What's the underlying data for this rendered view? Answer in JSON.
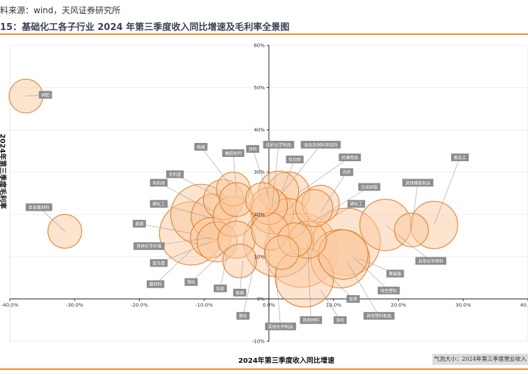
{
  "header": {
    "source": "料来源：wind，天风证券研究所",
    "title": "15：基础化工各子行业 2024 年第三季度收入同比增速及毛利率全景图"
  },
  "legend_note": "气泡大小：2024年第三季度营业收入",
  "colors": {
    "accent": "#f08a24",
    "bubble_fill": "#f9c9a0",
    "bubble_stroke": "#e8761a",
    "label_bg": "#8c8c8c",
    "label_text": "#ffffff"
  },
  "chart_data": {
    "type": "scatter",
    "xlabel": "2024年第三季度收入同比增速",
    "ylabel": "2024年第三季度毛利率",
    "xlim": [
      -40,
      40
    ],
    "ylim": [
      -10,
      60
    ],
    "x_ticks": [
      "-40.0%",
      "-30.0%",
      "-20.0%",
      "-10.0%",
      "0.0%",
      "10.0%",
      "20.0%",
      "30.0%",
      "40.0%"
    ],
    "y_ticks": [
      "-10%",
      "0%",
      "10%",
      "20%",
      "30%",
      "40%",
      "50%",
      "60%"
    ],
    "points": [
      {
        "name": "钾肥",
        "x": -37.5,
        "y": 48.0,
        "size": 3
      },
      {
        "name": "非金属材料",
        "x": -31.5,
        "y": 16.0,
        "size": 3
      },
      {
        "name": "氟化工",
        "x": 25.5,
        "y": 17.5,
        "size": 8
      },
      {
        "name": "其他橡胶制品",
        "x": 22.0,
        "y": 16.3,
        "size": 3
      },
      {
        "name": "其他化学原料",
        "x": 18.0,
        "y": 17.5,
        "size": 10
      },
      {
        "name": "改性塑料",
        "x": 12.0,
        "y": 13.5,
        "size": 20
      },
      {
        "name": "其他塑料制品",
        "x": 11.5,
        "y": 10.5,
        "size": 9
      },
      {
        "name": "聚氨酯",
        "x": 11.0,
        "y": 9.5,
        "size": 14
      },
      {
        "name": "磷化工",
        "x": 8.0,
        "y": 22.5,
        "size": 4
      },
      {
        "name": "合成树脂",
        "x": 5.0,
        "y": 11.5,
        "size": 25
      },
      {
        "name": "农药",
        "x": 4.0,
        "y": 14.0,
        "size": 3
      },
      {
        "name": "民爆用品",
        "x": 3.0,
        "y": 25.0,
        "size": 6
      },
      {
        "name": "纯碱",
        "x": -5.5,
        "y": 26.0,
        "size": 3
      },
      {
        "name": "橡胶助剂",
        "x": -5.0,
        "y": 23.5,
        "size": 3
      },
      {
        "name": "涤纶",
        "x": -10.5,
        "y": 20.0,
        "size": 15
      },
      {
        "name": "无机盐",
        "x": -7.0,
        "y": 23.5,
        "size": 5
      },
      {
        "name": "有机硅",
        "x": -8.5,
        "y": 19.5,
        "size": 7
      },
      {
        "name": "钛白粉",
        "x": 1.5,
        "y": 25.5,
        "size": 5
      },
      {
        "name": "食品及饲料添加剂",
        "x": -1.0,
        "y": 23.5,
        "size": 3
      },
      {
        "name": "其他化学制品",
        "x": 0.5,
        "y": 20.5,
        "size": 6
      },
      {
        "name": "涂料",
        "x": 0.0,
        "y": 22.0,
        "size": 4
      },
      {
        "name": "氯碱",
        "x": -12.0,
        "y": 15.5,
        "size": 17
      },
      {
        "name": "其他化学纤维",
        "x": -9.0,
        "y": 14.5,
        "size": 5
      },
      {
        "name": "复合肥",
        "x": -8.0,
        "y": 13.5,
        "size": 5
      },
      {
        "name": "氮肥",
        "x": -5.0,
        "y": 14.0,
        "size": 4
      },
      {
        "name": "粘胶",
        "x": -4.5,
        "y": 9.0,
        "size": 3
      },
      {
        "name": "锦纶",
        "x": 2.0,
        "y": 11.0,
        "size": 3
      },
      {
        "name": "其他化学原料2",
        "x": 1.5,
        "y": 13.5,
        "size": 22
      },
      {
        "name": "炭黑",
        "x": 5.5,
        "y": 5.0,
        "size": 14
      },
      {
        "name": "其他材料",
        "x": 6.0,
        "y": 14.0,
        "size": 4
      },
      {
        "name": "氨纶",
        "x": 3.0,
        "y": 19.0,
        "size": 5
      },
      {
        "name": "膜材料",
        "x": -5.5,
        "y": 19.5,
        "size": 5
      },
      {
        "name": "玻纤",
        "x": 7.0,
        "y": 21.5,
        "size": 4
      },
      {
        "name": "纺织化学制品",
        "x": 0.2,
        "y": 16.0,
        "size": 4
      }
    ],
    "labels": [
      {
        "text": "钾肥",
        "x": -34.5,
        "y": 48.3,
        "target": [
          -37.5,
          48.0
        ]
      },
      {
        "text": "非金属材料",
        "x": -35.5,
        "y": 21.7,
        "target": [
          -31.5,
          16.0
        ]
      },
      {
        "text": "纯碱",
        "x": -10.5,
        "y": 36.0,
        "target": [
          -6.0,
          27.0
        ]
      },
      {
        "text": "橡胶助剂",
        "x": -5.5,
        "y": 34.5,
        "target": [
          -5.0,
          25.0
        ]
      },
      {
        "text": "涂料",
        "x": -2.5,
        "y": 35.5,
        "target": [
          0.0,
          24.0
        ]
      },
      {
        "text": "纺织化学制品",
        "x": 1.5,
        "y": 36.5,
        "target": [
          0.5,
          22.0
        ]
      },
      {
        "text": "食品及饲料添加剂",
        "x": 8.0,
        "y": 36.5,
        "target": [
          1.5,
          24.0
        ]
      },
      {
        "text": "钛白粉",
        "x": 4.0,
        "y": 33.0,
        "target": [
          2.0,
          25.5
        ]
      },
      {
        "text": "民爆用品",
        "x": 12.5,
        "y": 33.5,
        "target": [
          4.5,
          25.0
        ]
      },
      {
        "text": "农药",
        "x": 12.0,
        "y": 30.0,
        "target": [
          8.0,
          20.5
        ]
      },
      {
        "text": "合成树脂",
        "x": 15.5,
        "y": 26.5,
        "target": [
          7.0,
          18.5
        ]
      },
      {
        "text": "磷化工",
        "x": 13.5,
        "y": 22.5,
        "target": [
          10.0,
          19.5
        ]
      },
      {
        "text": "氟化工",
        "x": 29.5,
        "y": 33.5,
        "target": [
          25.5,
          17.5
        ]
      },
      {
        "text": "其他橡胶制品",
        "x": 23.0,
        "y": 27.5,
        "target": [
          22.0,
          16.3
        ]
      },
      {
        "text": "其他化学原料",
        "x": 25.0,
        "y": 9.0,
        "target": [
          18.0,
          17.5
        ]
      },
      {
        "text": "聚氨酯",
        "x": 19.5,
        "y": 6.0,
        "target": [
          14.0,
          9.5
        ]
      },
      {
        "text": "改性塑料",
        "x": 18.5,
        "y": 2.0,
        "target": [
          13.0,
          10.0
        ]
      },
      {
        "text": "其他塑料制品",
        "x": 17.0,
        "y": -4.0,
        "target": [
          12.0,
          9.0
        ]
      },
      {
        "text": "炭黑",
        "x": 13.0,
        "y": 0.0,
        "target": [
          9.0,
          6.0
        ]
      },
      {
        "text": "涤纶",
        "x": 11.0,
        "y": -5.0,
        "target": [
          8.0,
          2.0
        ]
      },
      {
        "text": "其他材料",
        "x": 6.5,
        "y": -5.0,
        "target": [
          6.0,
          13.0
        ]
      },
      {
        "text": "其他化学制品",
        "x": 1.8,
        "y": -6.5,
        "target": [
          1.0,
          8.0
        ]
      },
      {
        "text": "氨纶",
        "x": -4.0,
        "y": -4.0,
        "target": [
          -2.0,
          10.0
        ]
      },
      {
        "text": "氯碱",
        "x": -4.5,
        "y": 1.5,
        "target": [
          -4.0,
          9.0
        ]
      },
      {
        "text": "粘胶",
        "x": -7.5,
        "y": 2.5,
        "target": [
          -6.5,
          10.0
        ]
      },
      {
        "text": "锦纶",
        "x": -12.0,
        "y": 4.0,
        "target": [
          -6.5,
          12.0
        ]
      },
      {
        "text": "膜材料",
        "x": -17.5,
        "y": 3.5,
        "target": [
          -12.0,
          11.5
        ]
      },
      {
        "text": "复合肥",
        "x": -17.0,
        "y": 8.5,
        "target": [
          -9.0,
          13.5
        ]
      },
      {
        "text": "其他化学纤维",
        "x": -18.5,
        "y": 12.5,
        "target": [
          -9.0,
          14.5
        ]
      },
      {
        "text": "氯碱2",
        "x": -20.0,
        "y": 17.8,
        "target": [
          -12.0,
          15.5
        ]
      },
      {
        "text": "磷化工2",
        "x": -17.0,
        "y": 22.5,
        "target": [
          -8.5,
          19.0
        ]
      },
      {
        "text": "有机硅",
        "x": -17.0,
        "y": 27.5,
        "target": [
          -9.0,
          21.0
        ]
      },
      {
        "text": "无机盐",
        "x": -14.5,
        "y": 29.5,
        "target": [
          -7.0,
          23.5
        ]
      }
    ],
    "label_display": {
      "氯碱2": "氯碱",
      "磷化工2": "磷化工"
    }
  }
}
